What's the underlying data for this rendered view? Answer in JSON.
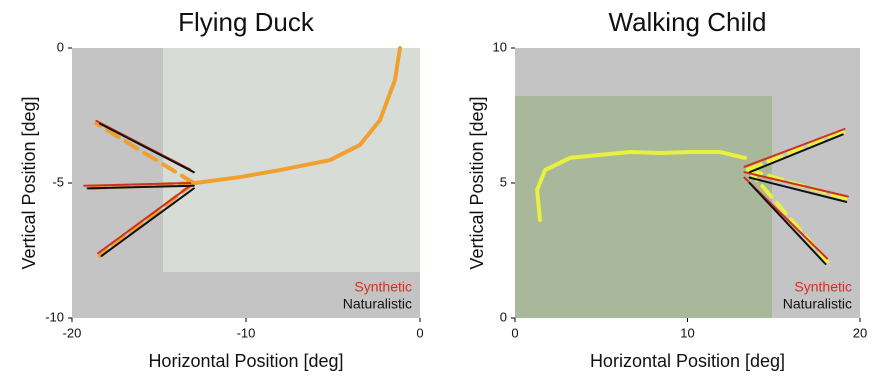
{
  "chart_data": [
    {
      "type": "line",
      "title": "Flying Duck",
      "xlabel": "Horizontal Position [deg]",
      "ylabel": "Vertical Position [deg]",
      "xlim": [
        -20,
        0
      ],
      "ylim": [
        -10,
        0
      ],
      "xticks": [
        -20,
        -10,
        0
      ],
      "yticks": [
        -10,
        -5,
        0
      ],
      "legend": "lower right",
      "series": [
        {
          "color": "#f0a030",
          "linestyle": "solid",
          "x": [
            -1.15,
            -1.44,
            -2.3,
            -3.45,
            -5.17,
            -8.05,
            -10.34,
            -12.93
          ],
          "values": [
            0,
            -1.19,
            -2.67,
            -3.59,
            -4.15,
            -4.52,
            -4.78,
            -5.0
          ]
        },
        {
          "color": "#f0a030",
          "linestyle": "dashed",
          "x": [
            -13,
            -18.6,
            null,
            -13,
            -19.3,
            null,
            -13,
            -18.4
          ],
          "values": [
            -5,
            -2.8,
            null,
            -5,
            -5.2,
            null,
            -5,
            -7.7
          ]
        },
        {
          "name": "Synthetic",
          "color": "#d03020",
          "linestyle": "solid",
          "x": [
            -13.2,
            -18.6,
            null,
            -13.2,
            -19.3,
            null,
            -13.2,
            -18.5
          ],
          "values": [
            -4.5,
            -2.7,
            null,
            -5.0,
            -5.1,
            null,
            -5.1,
            -7.6
          ]
        },
        {
          "name": "Naturalistic",
          "color": "#111111",
          "linestyle": "solid",
          "x": [
            -13.0,
            -18.4,
            null,
            -13.0,
            -19.1,
            null,
            -13.0,
            -18.3
          ],
          "values": [
            -4.6,
            -2.8,
            null,
            -5.1,
            -5.2,
            null,
            -5.2,
            -7.7
          ]
        }
      ]
    },
    {
      "type": "line",
      "title": "Walking Child",
      "xlabel": "Horizontal Position [deg]",
      "ylabel": "Vertical Position [deg]",
      "xlim": [
        0,
        20
      ],
      "ylim": [
        0,
        10
      ],
      "xticks": [
        0,
        10,
        20
      ],
      "yticks": [
        0,
        5,
        10
      ],
      "legend": "lower right",
      "series": [
        {
          "color": "#e8f040",
          "linestyle": "solid",
          "x": [
            1.45,
            1.28,
            1.74,
            3.19,
            4.93,
            6.67,
            8.41,
            10.14,
            11.88,
            13.33
          ],
          "values": [
            3.63,
            4.74,
            5.48,
            5.93,
            6.04,
            6.15,
            6.11,
            6.15,
            6.15,
            5.93
          ]
        },
        {
          "color": "#e8f040",
          "linestyle": "dashed",
          "x": [
            13.5,
            19.1,
            null,
            13.5,
            19.3,
            null,
            13.5,
            18.1
          ],
          "values": [
            5.5,
            6.9,
            null,
            5.5,
            4.4,
            null,
            5.5,
            2.1
          ]
        },
        {
          "name": "Synthetic",
          "color": "#d03020",
          "linestyle": "solid",
          "x": [
            13.3,
            19.1,
            null,
            13.3,
            19.3,
            null,
            13.3,
            18.1
          ],
          "values": [
            5.6,
            7.0,
            null,
            5.4,
            4.5,
            null,
            5.2,
            2.2
          ]
        },
        {
          "name": "Naturalistic",
          "color": "#111111",
          "linestyle": "solid",
          "x": [
            13.6,
            19.0,
            null,
            13.6,
            19.2,
            null,
            13.6,
            18.0
          ],
          "values": [
            5.4,
            6.8,
            null,
            5.2,
            4.3,
            null,
            5.0,
            2.0
          ]
        }
      ]
    }
  ]
}
